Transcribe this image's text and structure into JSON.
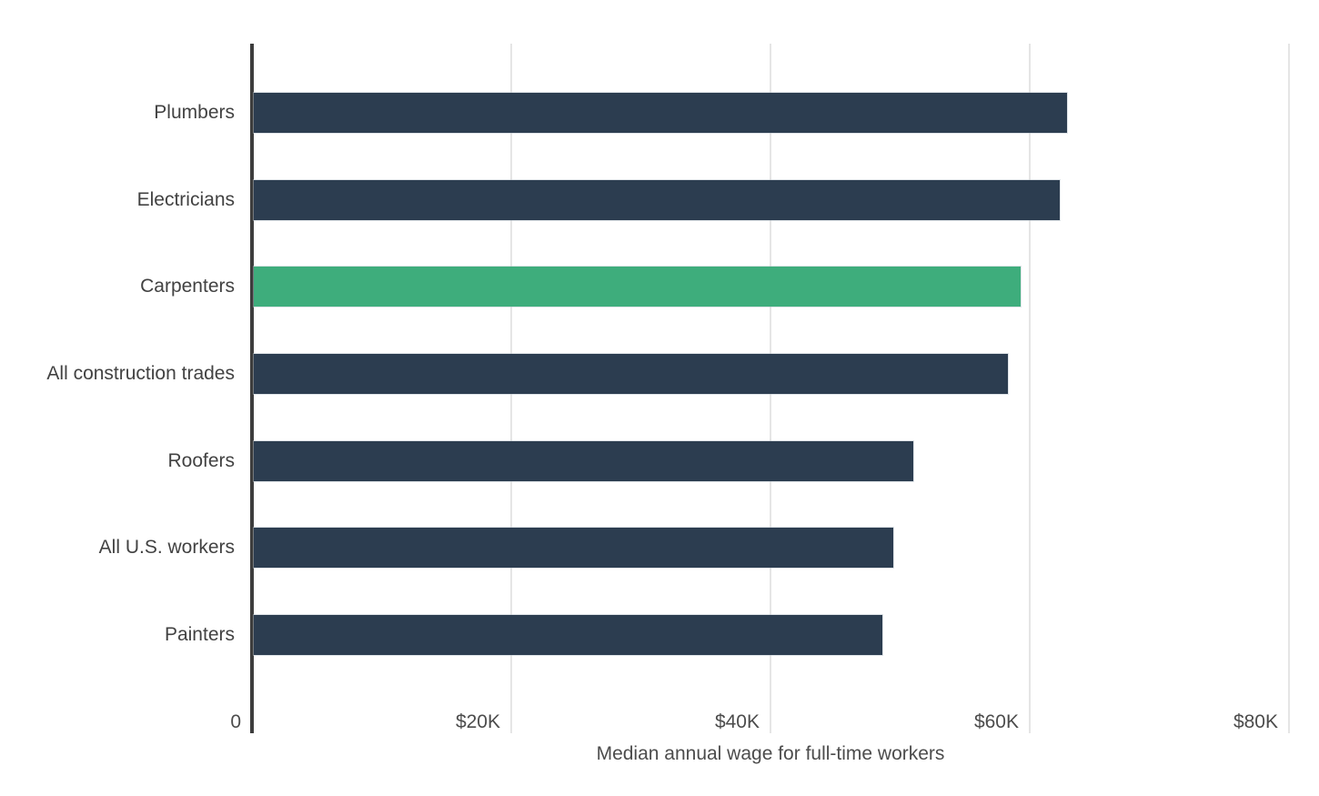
{
  "chart_data": {
    "type": "bar",
    "orientation": "horizontal",
    "title": "",
    "xlabel": "Median annual wage for full-time workers",
    "ylabel": "",
    "xlim": [
      0,
      80000
    ],
    "grid": true,
    "legend": false,
    "categories": [
      "Plumbers",
      "Electricians",
      "Carpenters",
      "All construction trades",
      "Roofers",
      "All U.S. workers",
      "Painters"
    ],
    "values": [
      62900,
      62300,
      59300,
      58300,
      51000,
      49500,
      48600
    ],
    "highlight_category": "Carpenters",
    "x_ticks": [
      {
        "value": 0,
        "label": "0"
      },
      {
        "value": 20000,
        "label": "$20K"
      },
      {
        "value": 40000,
        "label": "$40K"
      },
      {
        "value": 60000,
        "label": "$60K"
      },
      {
        "value": 80000,
        "label": "$80K"
      }
    ],
    "colors": {
      "bar": "#2c3d50",
      "highlight_bar": "#3ead7c",
      "gridline": "#e5e5e5",
      "axis_line": "#3d3d3d",
      "tick_label": "#4c4c4c",
      "category_label": "#424242",
      "axis_title": "#4c4c4c",
      "background": "#ffffff"
    }
  }
}
